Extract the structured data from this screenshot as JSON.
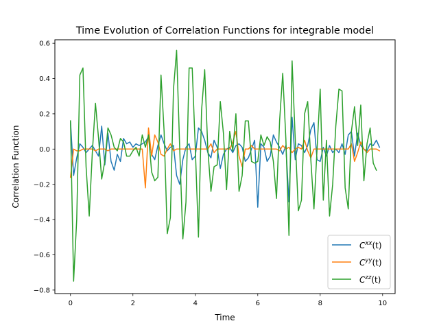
{
  "chart_data": {
    "type": "line",
    "title": "Time Evolution of Correlation Functions for integrable model",
    "xlabel": "Time",
    "ylabel": "Correlation Function",
    "xlim": [
      -0.5,
      10.4
    ],
    "ylim": [
      -0.82,
      0.62
    ],
    "xticks": [
      0,
      2,
      4,
      6,
      8,
      10
    ],
    "xtick_labels": [
      "0",
      "2",
      "4",
      "6",
      "8",
      "10"
    ],
    "yticks": [
      -0.8,
      -0.6,
      -0.4,
      -0.2,
      0.0,
      0.2,
      0.4,
      0.6
    ],
    "ytick_labels": [
      "−0.8",
      "−0.6",
      "−0.4",
      "−0.2",
      "0.0",
      "0.2",
      "0.4",
      "0.6"
    ],
    "grid": false,
    "legend_position": "lower-right",
    "x": [
      0.0,
      0.1,
      0.2,
      0.3,
      0.4,
      0.5,
      0.6,
      0.7,
      0.8,
      0.9,
      1.0,
      1.1,
      1.2,
      1.3,
      1.4,
      1.5,
      1.6,
      1.7,
      1.8,
      1.9,
      2.0,
      2.1,
      2.2,
      2.3,
      2.4,
      2.5,
      2.6,
      2.7,
      2.8,
      2.9,
      3.0,
      3.1,
      3.2,
      3.3,
      3.4,
      3.5,
      3.6,
      3.7,
      3.8,
      3.9,
      4.0,
      4.1,
      4.2,
      4.3,
      4.4,
      4.5,
      4.6,
      4.7,
      4.8,
      4.9,
      5.0,
      5.1,
      5.2,
      5.3,
      5.4,
      5.5,
      5.6,
      5.7,
      5.8,
      5.9,
      6.0,
      6.1,
      6.2,
      6.3,
      6.4,
      6.5,
      6.6,
      6.7,
      6.8,
      6.9,
      7.0,
      7.1,
      7.2,
      7.3,
      7.4,
      7.5,
      7.6,
      7.7,
      7.8,
      7.9,
      8.0,
      8.1,
      8.2,
      8.3,
      8.4,
      8.5,
      8.6,
      8.7,
      8.8,
      8.9,
      9.0,
      9.1,
      9.2,
      9.3,
      9.4,
      9.5,
      9.6,
      9.7,
      9.8,
      9.9
    ],
    "series": [
      {
        "name": "C^{xx}(t)",
        "legend_main": "C",
        "legend_sup": "xx",
        "legend_tail": "(t)",
        "color": "#1f77b4",
        "values": [
          0.16,
          -0.15,
          -0.05,
          0.03,
          0.01,
          -0.02,
          0.0,
          0.02,
          -0.01,
          -0.04,
          0.13,
          -0.09,
          0.09,
          -0.07,
          -0.12,
          -0.03,
          -0.07,
          0.06,
          0.03,
          0.04,
          0.01,
          0.03,
          0.02,
          0.03,
          0.04,
          0.07,
          -0.03,
          -0.06,
          0.02,
          0.08,
          0.03,
          -0.01,
          0.01,
          0.02,
          -0.15,
          -0.2,
          -0.06,
          0.01,
          0.03,
          -0.06,
          -0.04,
          0.12,
          0.1,
          0.05,
          -0.02,
          -0.05,
          0.05,
          0.01,
          -0.11,
          -0.03,
          0.0,
          0.01,
          -0.02,
          0.02,
          0.03,
          0.01,
          -0.07,
          -0.05,
          0.0,
          0.05,
          -0.33,
          0.03,
          0.01,
          -0.07,
          -0.04,
          0.08,
          0.04,
          0.01,
          -0.03,
          0.02,
          -0.3,
          0.18,
          -0.06,
          0.03,
          0.02,
          -0.02,
          0.02,
          0.11,
          0.15,
          -0.06,
          -0.07,
          0.01,
          -0.04,
          0.02,
          -0.02,
          0.0,
          -0.02,
          0.03,
          -0.03,
          0.08,
          0.1,
          -0.04,
          0.09,
          0.02,
          0.0,
          -0.01,
          0.03,
          0.02,
          0.05,
          0.01
        ]
      },
      {
        "name": "C^{yy}(t)",
        "legend_main": "C",
        "legend_sup": "yy",
        "legend_tail": "(t)",
        "color": "#ff7f0e",
        "values": [
          -0.16,
          0.0,
          -0.01,
          -0.01,
          0.0,
          0.0,
          0.0,
          0.0,
          -0.01,
          0.0,
          0.0,
          0.0,
          -0.01,
          0.0,
          0.0,
          0.0,
          0.0,
          0.0,
          0.0,
          0.0,
          0.0,
          0.0,
          0.0,
          0.0,
          -0.22,
          0.12,
          -0.04,
          0.08,
          0.04,
          -0.03,
          -0.04,
          0.0,
          0.03,
          -0.01,
          0.0,
          0.0,
          0.0,
          0.0,
          0.0,
          0.0,
          0.0,
          0.0,
          0.0,
          0.0,
          0.0,
          0.03,
          -0.02,
          0.0,
          0.0,
          0.0,
          0.0,
          0.0,
          0.04,
          0.1,
          -0.04,
          -0.1,
          0.0,
          0.0,
          0.02,
          0.0,
          0.0,
          0.0,
          0.0,
          0.0,
          0.0,
          0.0,
          0.0,
          -0.01,
          0.02,
          0.0,
          0.01,
          -0.02,
          0.0,
          0.01,
          0.0,
          0.05,
          -0.01,
          -0.05,
          0.0,
          0.0,
          0.0,
          0.0,
          0.0,
          0.0,
          0.0,
          0.0,
          0.0,
          0.0,
          0.0,
          0.0,
          0.03,
          -0.07,
          -0.02,
          0.04,
          0.0,
          -0.02,
          0.0,
          0.0,
          0.0,
          -0.01
        ]
      },
      {
        "name": "C^{zz}(t)",
        "legend_main": "C",
        "legend_sup": "zz",
        "legend_tail": "(t)",
        "color": "#2ca02c",
        "values": [
          0.16,
          -0.75,
          -0.4,
          0.42,
          0.46,
          -0.1,
          -0.38,
          -0.02,
          0.26,
          0.06,
          -0.17,
          -0.07,
          0.12,
          0.08,
          0.01,
          -0.01,
          0.06,
          0.04,
          -0.04,
          -0.04,
          -0.01,
          0.01,
          -0.04,
          0.08,
          0.01,
          0.08,
          -0.13,
          -0.18,
          -0.16,
          0.42,
          0.1,
          -0.48,
          -0.39,
          0.34,
          0.56,
          0.0,
          -0.51,
          -0.3,
          0.46,
          0.46,
          0.0,
          -0.5,
          0.22,
          0.45,
          0.0,
          -0.24,
          -0.1,
          -0.09,
          0.27,
          0.09,
          -0.23,
          0.1,
          -0.01,
          0.2,
          -0.24,
          -0.15,
          0.16,
          0.16,
          -0.07,
          -0.08,
          -0.07,
          0.08,
          0.02,
          0.07,
          0.04,
          -0.07,
          -0.28,
          0.16,
          0.43,
          0.06,
          -0.49,
          0.5,
          0.06,
          -0.35,
          -0.29,
          0.2,
          0.27,
          -0.06,
          -0.34,
          0.0,
          0.34,
          -0.29,
          0.05,
          -0.38,
          -0.2,
          0.13,
          0.34,
          0.33,
          -0.22,
          -0.34,
          0.1,
          0.24,
          0.02,
          0.25,
          -0.18,
          0.03,
          0.12,
          -0.08,
          -0.12,
          null
        ]
      }
    ]
  }
}
